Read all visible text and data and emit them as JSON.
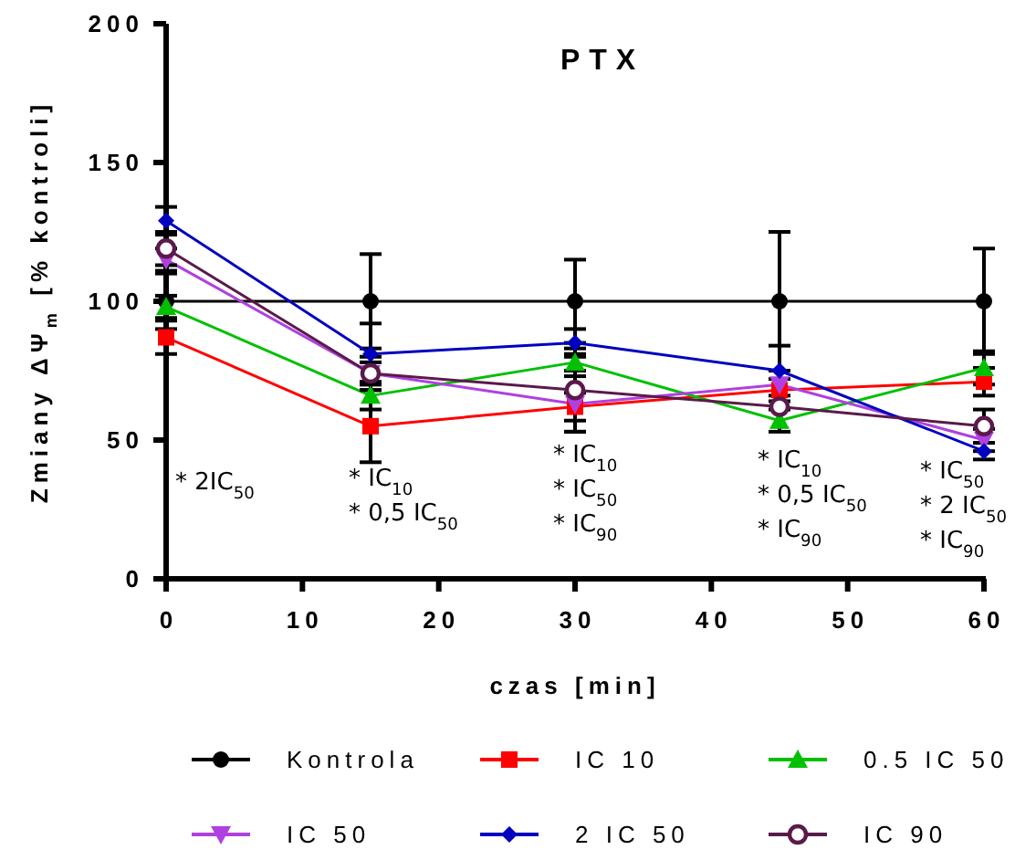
{
  "chart_data": {
    "type": "line",
    "title": "PTX",
    "xlabel": "czas [min]",
    "ylabel": "Zmiany ΔΨ$_{m}$ [% kontroli]",
    "x": [
      0,
      15,
      30,
      45,
      60
    ],
    "xlim": [
      0,
      60
    ],
    "xticks": [
      0,
      10,
      20,
      30,
      40,
      50,
      60
    ],
    "ylim": [
      0,
      200
    ],
    "yticks": [
      0,
      50,
      100,
      150,
      200
    ],
    "grid": false,
    "legend": "bottom",
    "series": [
      {
        "name": "Kontrola",
        "color": "#000000",
        "marker": "circle",
        "values": [
          100,
          100,
          100,
          100,
          100
        ],
        "errors": [
          10,
          17,
          15,
          25,
          19
        ]
      },
      {
        "name": "IC 10",
        "color": "#ff0000",
        "marker": "square",
        "values": [
          87,
          55,
          62,
          68,
          71
        ],
        "errors": [
          6,
          13,
          5,
          4,
          5
        ]
      },
      {
        "name": "0.5 IC 50",
        "color": "#00c000",
        "marker": "triangle",
        "values": [
          98,
          66,
          78,
          57,
          76
        ],
        "errors": [
          4,
          5,
          3,
          4,
          6
        ]
      },
      {
        "name": "IC 50",
        "color": "#b040e0",
        "marker": "triangle-down",
        "values": [
          115,
          74,
          63,
          70,
          50
        ],
        "errors": [
          4,
          4,
          10,
          null,
          4
        ]
      },
      {
        "name": "2 IC 50",
        "color": "#0000c0",
        "marker": "diamond",
        "values": [
          129,
          81,
          85,
          75,
          46
        ],
        "errors": [
          5,
          11,
          5,
          9,
          3
        ]
      },
      {
        "name": "IC 90",
        "color": "#5a1a4a",
        "marker": "circle-open",
        "values": [
          119,
          74,
          68,
          62,
          55
        ],
        "errors": [
          6,
          6,
          15,
          null,
          6
        ]
      }
    ],
    "annotations": [
      "* 2IC$_{50}$",
      "* IC$_{10}$\n* 0,5 IC$_{50}$",
      "* IC$_{10}$\n* IC$_{50}$\n* IC$_{90}$",
      "* IC$_{10}$\n* 0,5 IC$_{50}$\n* IC$_{90}$",
      "* IC$_{50}$\n* 2 IC$_{50}$\n* IC$_{90}$"
    ]
  }
}
